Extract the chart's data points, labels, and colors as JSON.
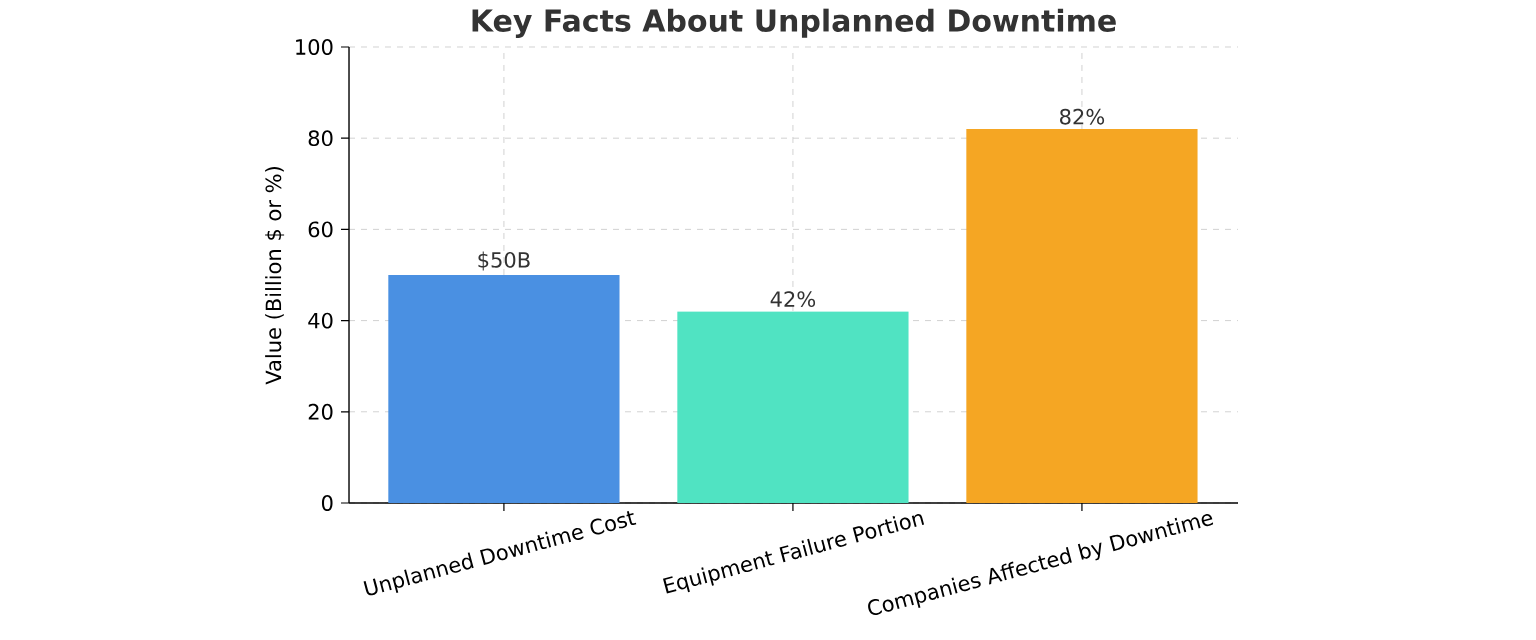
{
  "chart_data": {
    "type": "bar",
    "title": "Key Facts About Unplanned Downtime",
    "ylabel": "Value (Billion $ or %)",
    "categories": [
      "Unplanned Downtime Cost",
      "Equipment Failure Portion",
      "Companies Affected by Downtime"
    ],
    "values": [
      50,
      42,
      82
    ],
    "colors": [
      "#4a90e2",
      "#50e3c2",
      "#f5a623"
    ],
    "value_labels": [
      "$50B",
      "42%",
      "82%"
    ],
    "ylim": [
      0,
      100
    ],
    "yticks": [
      0,
      20,
      40,
      60,
      80,
      100
    ],
    "grid": true
  }
}
